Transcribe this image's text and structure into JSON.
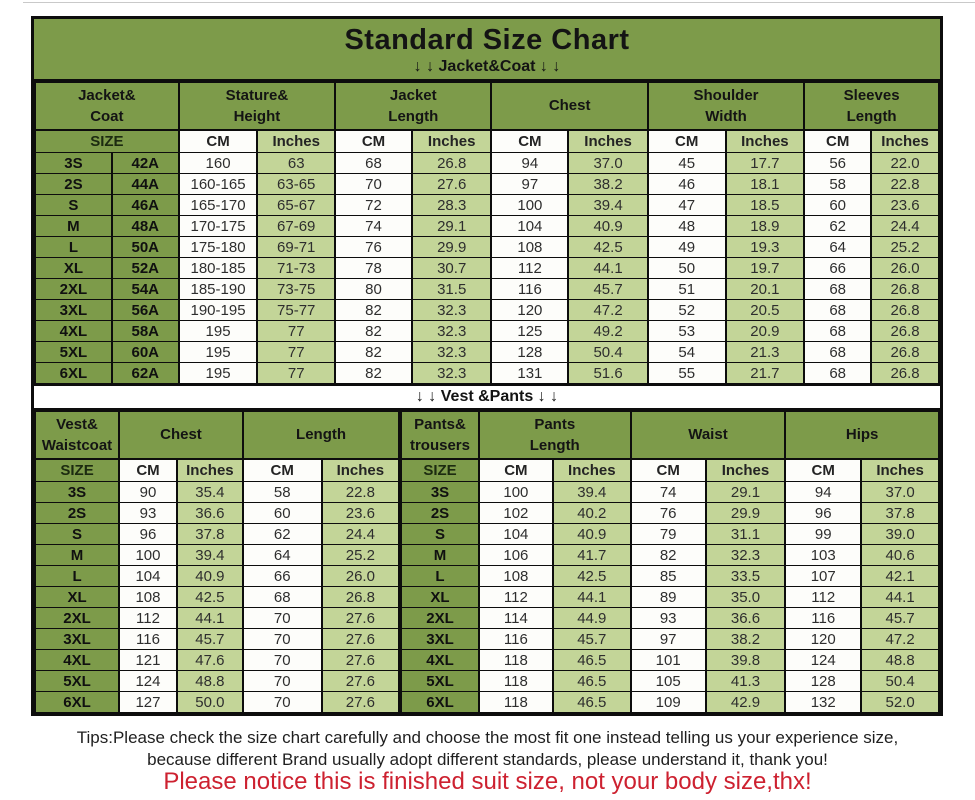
{
  "header": {
    "title": "Standard Size Chart",
    "jacket_section_label": "↓ ↓  Jacket&Coat ↓ ↓",
    "vest_section_label": "↓ ↓  Vest &Pants ↓ ↓"
  },
  "jacket_table": {
    "group_headers": [
      "Jacket&\nCoat",
      "Stature&\nHeight",
      "Jacket\nLength",
      "Chest",
      "Shoulder\nWidth",
      "Sleeves\nLength"
    ],
    "sub_headers": [
      "SIZE",
      "CM",
      "Inches",
      "CM",
      "Inches",
      "CM",
      "Inches",
      "CM",
      "Inches",
      "CM",
      "Inches"
    ],
    "rows": [
      [
        "3S",
        "42A",
        "160",
        "63",
        "68",
        "26.8",
        "94",
        "37.0",
        "45",
        "17.7",
        "56",
        "22.0"
      ],
      [
        "2S",
        "44A",
        "160-165",
        "63-65",
        "70",
        "27.6",
        "97",
        "38.2",
        "46",
        "18.1",
        "58",
        "22.8"
      ],
      [
        "S",
        "46A",
        "165-170",
        "65-67",
        "72",
        "28.3",
        "100",
        "39.4",
        "47",
        "18.5",
        "60",
        "23.6"
      ],
      [
        "M",
        "48A",
        "170-175",
        "67-69",
        "74",
        "29.1",
        "104",
        "40.9",
        "48",
        "18.9",
        "62",
        "24.4"
      ],
      [
        "L",
        "50A",
        "175-180",
        "69-71",
        "76",
        "29.9",
        "108",
        "42.5",
        "49",
        "19.3",
        "64",
        "25.2"
      ],
      [
        "XL",
        "52A",
        "180-185",
        "71-73",
        "78",
        "30.7",
        "112",
        "44.1",
        "50",
        "19.7",
        "66",
        "26.0"
      ],
      [
        "2XL",
        "54A",
        "185-190",
        "73-75",
        "80",
        "31.5",
        "116",
        "45.7",
        "51",
        "20.1",
        "68",
        "26.8"
      ],
      [
        "3XL",
        "56A",
        "190-195",
        "75-77",
        "82",
        "32.3",
        "120",
        "47.2",
        "52",
        "20.5",
        "68",
        "26.8"
      ],
      [
        "4XL",
        "58A",
        "195",
        "77",
        "82",
        "32.3",
        "125",
        "49.2",
        "53",
        "20.9",
        "68",
        "26.8"
      ],
      [
        "5XL",
        "60A",
        "195",
        "77",
        "82",
        "32.3",
        "128",
        "50.4",
        "54",
        "21.3",
        "68",
        "26.8"
      ],
      [
        "6XL",
        "62A",
        "195",
        "77",
        "82",
        "32.3",
        "131",
        "51.6",
        "55",
        "21.7",
        "68",
        "26.8"
      ]
    ]
  },
  "vest_pants_table": {
    "group_headers": [
      "Vest&\nWaistcoat",
      "Chest",
      "Length",
      "Pants&\ntrousers",
      "Pants\nLength",
      "Waist",
      "Hips"
    ],
    "sub_headers": [
      "SIZE",
      "CM",
      "Inches",
      "CM",
      "Inches",
      "SIZE",
      "CM",
      "Inches",
      "CM",
      "Inches",
      "CM",
      "Inches"
    ],
    "rows": [
      [
        "3S",
        "90",
        "35.4",
        "58",
        "22.8",
        "3S",
        "100",
        "39.4",
        "74",
        "29.1",
        "94",
        "37.0"
      ],
      [
        "2S",
        "93",
        "36.6",
        "60",
        "23.6",
        "2S",
        "102",
        "40.2",
        "76",
        "29.9",
        "96",
        "37.8"
      ],
      [
        "S",
        "96",
        "37.8",
        "62",
        "24.4",
        "S",
        "104",
        "40.9",
        "79",
        "31.1",
        "99",
        "39.0"
      ],
      [
        "M",
        "100",
        "39.4",
        "64",
        "25.2",
        "M",
        "106",
        "41.7",
        "82",
        "32.3",
        "103",
        "40.6"
      ],
      [
        "L",
        "104",
        "40.9",
        "66",
        "26.0",
        "L",
        "108",
        "42.5",
        "85",
        "33.5",
        "107",
        "42.1"
      ],
      [
        "XL",
        "108",
        "42.5",
        "68",
        "26.8",
        "XL",
        "112",
        "44.1",
        "89",
        "35.0",
        "112",
        "44.1"
      ],
      [
        "2XL",
        "112",
        "44.1",
        "70",
        "27.6",
        "2XL",
        "114",
        "44.9",
        "93",
        "36.6",
        "116",
        "45.7"
      ],
      [
        "3XL",
        "116",
        "45.7",
        "70",
        "27.6",
        "3XL",
        "116",
        "45.7",
        "97",
        "38.2",
        "120",
        "47.2"
      ],
      [
        "4XL",
        "121",
        "47.6",
        "70",
        "27.6",
        "4XL",
        "118",
        "46.5",
        "101",
        "39.8",
        "124",
        "48.8"
      ],
      [
        "5XL",
        "124",
        "48.8",
        "70",
        "27.6",
        "5XL",
        "118",
        "46.5",
        "105",
        "41.3",
        "128",
        "50.4"
      ],
      [
        "6XL",
        "127",
        "50.0",
        "70",
        "27.6",
        "6XL",
        "118",
        "46.5",
        "109",
        "42.9",
        "132",
        "52.0"
      ]
    ]
  },
  "footer": {
    "tips_line1": "Tips:Please check the size chart carefully and choose the most fit one instead telling us your experience size,",
    "tips_line2": "because different Brand usually adopt different standards, please understand it, thank you!",
    "notice": "Please notice this is finished suit size, not your body size,thx!"
  },
  "colors": {
    "table_green": "#7d9b4a",
    "cell_light_green": "#c3d598",
    "cell_white": "#fdfdfa",
    "border_black": "#0d0d0d",
    "notice_red": "#cd2130"
  }
}
